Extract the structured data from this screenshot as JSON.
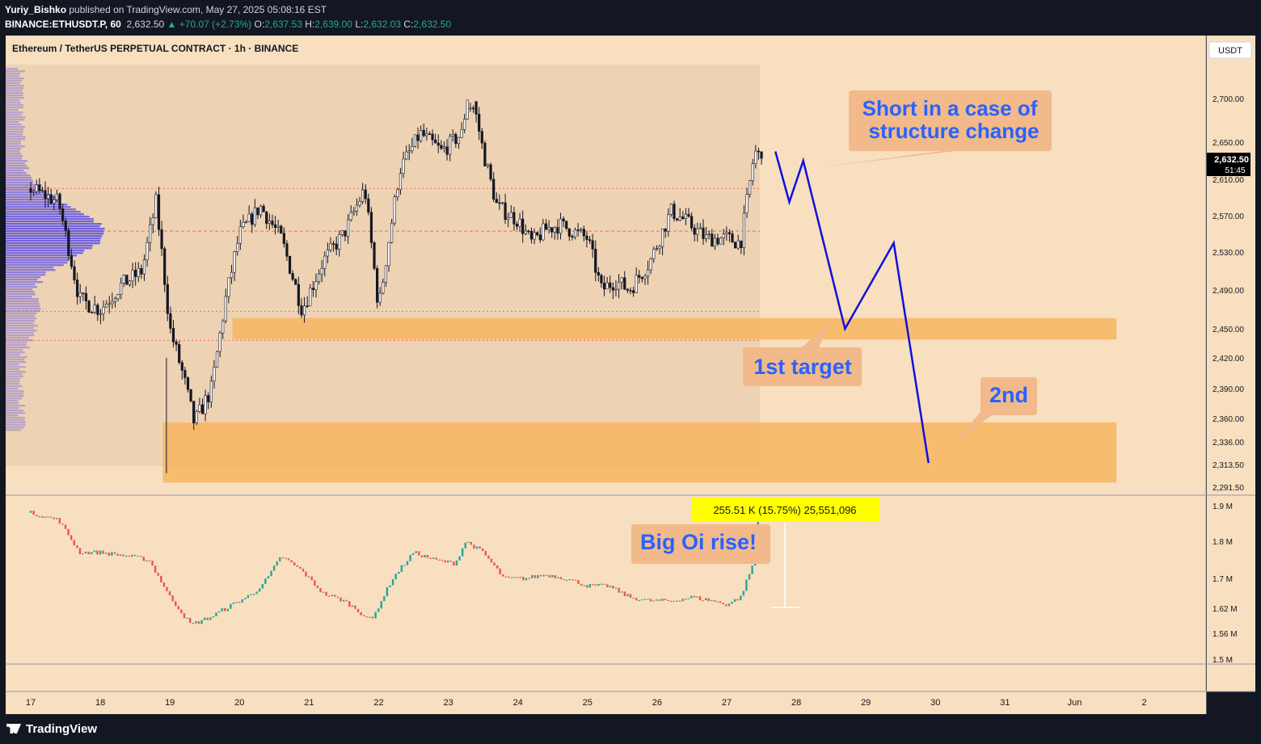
{
  "header": {
    "author": "Yuriy_Bishko",
    "published_text": "published on TradingView.com, May 27, 2025 05:08:16 EST",
    "symbol_line": "BINANCE:ETHUSDT.P, 60",
    "last": "2,632.50",
    "change": "+70.07 (+2.73%)",
    "o_label": "O:",
    "o_value": "2,637.53",
    "h_label": "H:",
    "h_value": "2,639.00",
    "l_label": "L:",
    "l_value": "2,632.03",
    "c_label": "C:",
    "c_value": "2,632.50"
  },
  "colors": {
    "background": "#f7dfbf",
    "up_candle": "#26a69a",
    "down_candle": "#ef5350",
    "zone": "#f7b35a",
    "volume_profile": "#5a4fe8",
    "projection": "#1010e0",
    "label_text": "#2962ff",
    "label_bg": "#f2b98a",
    "oi_label_bg": "#ffff00"
  },
  "chart_data": [
    {
      "type": "candlestick",
      "title": "Ethereum / TetherUS PERPETUAL CONTRACT · 1h · BINANCE",
      "currency_label": "USDT",
      "x_labels": [
        "17",
        "18",
        "19",
        "20",
        "21",
        "22",
        "23",
        "24",
        "25",
        "26",
        "27",
        "28",
        "29",
        "30",
        "31",
        "Jun",
        "2"
      ],
      "y_ticks": [
        "2,700.00",
        "2,650.00",
        "2,610.00",
        "2,570.00",
        "2,530.00",
        "2,490.00",
        "2,450.00",
        "2,420.00",
        "2,390.00",
        "2,360.00",
        "2,336.00",
        "2,313.50",
        "2,291.50"
      ],
      "last_price": "2,632.50",
      "countdown": "51:45",
      "price_path": [
        [
          17.0,
          2600
        ],
        [
          17.4,
          2585
        ],
        [
          17.7,
          2480
        ],
        [
          18.0,
          2470
        ],
        [
          18.3,
          2495
        ],
        [
          18.6,
          2510
        ],
        [
          18.8,
          2585
        ],
        [
          19.0,
          2450
        ],
        [
          19.2,
          2400
        ],
        [
          19.35,
          2355
        ],
        [
          19.6,
          2390
        ],
        [
          19.8,
          2480
        ],
        [
          20.0,
          2550
        ],
        [
          20.3,
          2580
        ],
        [
          20.6,
          2545
        ],
        [
          20.9,
          2470
        ],
        [
          21.2,
          2520
        ],
        [
          21.5,
          2550
        ],
        [
          21.8,
          2600
        ],
        [
          22.0,
          2470
        ],
        [
          22.3,
          2620
        ],
        [
          22.6,
          2660
        ],
        [
          22.9,
          2640
        ],
        [
          23.2,
          2660
        ],
        [
          23.3,
          2720
        ],
        [
          23.5,
          2640
        ],
        [
          23.7,
          2580
        ],
        [
          24.0,
          2565
        ],
        [
          24.2,
          2540
        ],
        [
          24.4,
          2555
        ],
        [
          24.6,
          2560
        ],
        [
          25.0,
          2545
        ],
        [
          25.2,
          2490
        ],
        [
          25.4,
          2500
        ],
        [
          25.6,
          2490
        ],
        [
          25.9,
          2520
        ],
        [
          26.2,
          2575
        ],
        [
          26.4,
          2565
        ],
        [
          26.7,
          2545
        ],
        [
          27.0,
          2545
        ],
        [
          27.2,
          2540
        ],
        [
          27.4,
          2640
        ],
        [
          27.5,
          2632.5
        ]
      ],
      "projection_path": [
        [
          27.7,
          2640
        ],
        [
          27.9,
          2585
        ],
        [
          28.1,
          2630
        ],
        [
          28.7,
          2450
        ],
        [
          29.4,
          2540
        ],
        [
          29.9,
          2315
        ]
      ],
      "zones": [
        {
          "x0": 16.9,
          "x1": 19.6,
          "y0": 2700,
          "y1": 2740
        },
        {
          "x0": 19.9,
          "x1": 32.6,
          "y0": 2439,
          "y1": 2461
        },
        {
          "x0": 18.9,
          "x1": 32.6,
          "y0": 2296,
          "y1": 2356
        }
      ],
      "reference_levels": [
        2600,
        2553,
        2468,
        2438
      ],
      "annotations": [
        {
          "text": "Short in a case of structure change"
        },
        {
          "text": "1st target"
        },
        {
          "text": "2nd"
        }
      ]
    },
    {
      "type": "line",
      "name": "Open Interest",
      "y_ticks": [
        "1.9 M",
        "1.8 M",
        "1.7 M",
        "1.62 M",
        "1.56 M",
        "1.5 M"
      ],
      "x": [
        17.0,
        17.4,
        17.7,
        18.0,
        18.4,
        18.7,
        19.0,
        19.3,
        19.6,
        19.9,
        20.2,
        20.4,
        20.6,
        20.9,
        21.2,
        21.5,
        21.9,
        22.2,
        22.5,
        22.8,
        23.1,
        23.25,
        23.5,
        23.8,
        24.1,
        24.4,
        24.7,
        25.0,
        25.3,
        25.6,
        25.9,
        26.2,
        26.5,
        26.8,
        27.0,
        27.2,
        27.4,
        27.45
      ],
      "values": [
        1.88,
        1.86,
        1.77,
        1.77,
        1.76,
        1.75,
        1.65,
        1.58,
        1.6,
        1.63,
        1.66,
        1.7,
        1.76,
        1.72,
        1.66,
        1.64,
        1.59,
        1.7,
        1.77,
        1.75,
        1.74,
        1.8,
        1.77,
        1.7,
        1.7,
        1.71,
        1.7,
        1.68,
        1.68,
        1.65,
        1.64,
        1.64,
        1.65,
        1.64,
        1.63,
        1.65,
        1.75,
        1.88
      ],
      "measure_label": "255.51 K (15.75%) 25,551,096",
      "annotation": "Big Oi rise!"
    }
  ],
  "footer": {
    "brand": "TradingView"
  }
}
